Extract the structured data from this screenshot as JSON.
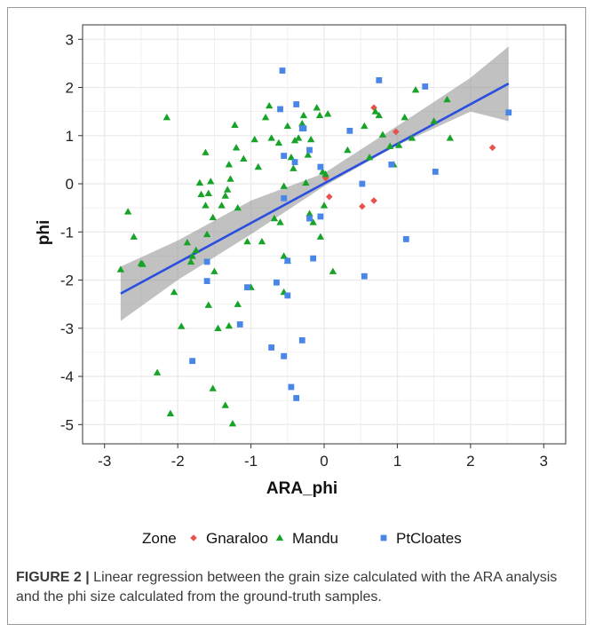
{
  "chart_data": {
    "type": "scatter",
    "xlabel": "ARA_phi",
    "ylabel": "phi",
    "xlim": [
      -3.3,
      3.3
    ],
    "ylim": [
      -5.4,
      3.3
    ],
    "x_ticks": [
      -3,
      -2,
      -1,
      0,
      1,
      2,
      3
    ],
    "y_ticks": [
      -5,
      -4,
      -3,
      -2,
      -1,
      0,
      1,
      2,
      3
    ],
    "grid": true,
    "legend": {
      "title": "Zone",
      "position": "bottom",
      "entries": [
        "Gnaraloo",
        "Mandu",
        "PtCloates"
      ]
    },
    "regression": {
      "method": "linear",
      "fit_line": {
        "x": [
          -2.78,
          2.52
        ],
        "y": [
          -2.28,
          2.08
        ]
      },
      "confidence_band": {
        "x": [
          -2.78,
          -2.0,
          -1.0,
          0.0,
          1.0,
          2.0,
          2.52
        ],
        "lower": [
          -2.85,
          -2.0,
          -1.05,
          -0.05,
          0.8,
          1.5,
          1.3
        ],
        "upper": [
          -1.72,
          -1.18,
          -0.35,
          0.22,
          1.2,
          2.2,
          2.85
        ]
      }
    },
    "series": [
      {
        "name": "Gnaraloo",
        "marker": "diamond",
        "points": [
          [
            0.68,
            1.58
          ],
          [
            0.98,
            1.08
          ],
          [
            2.3,
            0.75
          ],
          [
            0.02,
            0.12
          ],
          [
            0.07,
            -0.27
          ],
          [
            0.52,
            -0.47
          ],
          [
            0.68,
            -0.35
          ]
        ]
      },
      {
        "name": "Mandu",
        "marker": "triangle",
        "points": [
          [
            -2.15,
            1.38
          ],
          [
            -2.78,
            -1.78
          ],
          [
            -2.68,
            -0.58
          ],
          [
            -2.6,
            -1.1
          ],
          [
            -2.48,
            -1.67
          ],
          [
            -2.28,
            -3.92
          ],
          [
            -2.1,
            -4.77
          ],
          [
            -2.05,
            -2.25
          ],
          [
            -1.95,
            -2.96
          ],
          [
            -1.87,
            -1.22
          ],
          [
            -1.82,
            -1.62
          ],
          [
            -1.75,
            -1.38
          ],
          [
            -1.7,
            0.02
          ],
          [
            -1.68,
            -0.22
          ],
          [
            -1.62,
            -0.45
          ],
          [
            -1.6,
            -1.05
          ],
          [
            -1.58,
            -0.2
          ],
          [
            -1.55,
            0.05
          ],
          [
            -1.52,
            -0.7
          ],
          [
            -1.5,
            -1.82
          ],
          [
            -1.62,
            0.65
          ],
          [
            -1.58,
            -2.52
          ],
          [
            -1.52,
            -4.25
          ],
          [
            -1.45,
            -3.0
          ],
          [
            -1.4,
            -0.45
          ],
          [
            -1.35,
            -0.25
          ],
          [
            -1.3,
            0.4
          ],
          [
            -1.28,
            0.1
          ],
          [
            -1.32,
            -0.12
          ],
          [
            -1.3,
            -2.95
          ],
          [
            -1.35,
            -4.6
          ],
          [
            -1.25,
            -4.98
          ],
          [
            -1.22,
            1.22
          ],
          [
            -1.2,
            0.75
          ],
          [
            -1.18,
            -0.5
          ],
          [
            -1.18,
            -2.5
          ],
          [
            -1.1,
            0.52
          ],
          [
            -1.05,
            -1.2
          ],
          [
            -1.0,
            -2.15
          ],
          [
            -0.95,
            0.92
          ],
          [
            -0.9,
            0.35
          ],
          [
            -0.85,
            -1.2
          ],
          [
            -0.8,
            1.38
          ],
          [
            -0.75,
            1.62
          ],
          [
            -0.72,
            0.95
          ],
          [
            -0.68,
            -0.72
          ],
          [
            -0.62,
            0.85
          ],
          [
            -0.6,
            -0.8
          ],
          [
            -0.55,
            -0.05
          ],
          [
            -0.55,
            -1.5
          ],
          [
            -0.5,
            -1.6
          ],
          [
            -0.5,
            1.2
          ],
          [
            -0.45,
            0.55
          ],
          [
            -0.42,
            0.32
          ],
          [
            -0.4,
            0.9
          ],
          [
            -0.35,
            0.95
          ],
          [
            -0.3,
            1.25
          ],
          [
            -0.28,
            1.42
          ],
          [
            -0.25,
            0.02
          ],
          [
            -0.22,
            0.6
          ],
          [
            -0.2,
            -0.62
          ],
          [
            -0.18,
            0.92
          ],
          [
            -0.15,
            -0.8
          ],
          [
            -0.1,
            1.58
          ],
          [
            -0.06,
            1.42
          ],
          [
            -0.05,
            -1.1
          ],
          [
            -0.02,
            0.25
          ],
          [
            0.0,
            -0.45
          ],
          [
            0.02,
            0.2
          ],
          [
            0.05,
            1.45
          ],
          [
            0.12,
            -1.82
          ],
          [
            0.32,
            0.7
          ],
          [
            0.55,
            1.2
          ],
          [
            0.62,
            0.55
          ],
          [
            0.7,
            1.5
          ],
          [
            0.75,
            1.42
          ],
          [
            0.8,
            1.02
          ],
          [
            0.9,
            0.78
          ],
          [
            0.95,
            0.4
          ],
          [
            1.02,
            0.8
          ],
          [
            1.1,
            1.38
          ],
          [
            1.2,
            0.95
          ],
          [
            1.25,
            1.95
          ],
          [
            1.5,
            1.3
          ],
          [
            1.68,
            1.75
          ],
          [
            1.72,
            0.95
          ],
          [
            -2.5,
            -1.65
          ],
          [
            -1.8,
            -1.5
          ],
          [
            -0.55,
            -2.25
          ]
        ]
      },
      {
        "name": "PtCloates",
        "marker": "square",
        "points": [
          [
            -0.57,
            2.35
          ],
          [
            -0.6,
            1.55
          ],
          [
            -0.3,
            1.15
          ],
          [
            -0.38,
            1.65
          ],
          [
            0.75,
            2.15
          ],
          [
            1.38,
            2.02
          ],
          [
            2.52,
            1.48
          ],
          [
            0.92,
            0.4
          ],
          [
            1.52,
            0.25
          ],
          [
            1.12,
            -1.15
          ],
          [
            0.55,
            -1.92
          ],
          [
            0.52,
            0.0
          ],
          [
            -0.2,
            -0.72
          ],
          [
            -0.05,
            -0.68
          ],
          [
            -0.05,
            0.35
          ],
          [
            -0.15,
            -1.55
          ],
          [
            -0.5,
            -1.6
          ],
          [
            -0.65,
            -2.05
          ],
          [
            -0.5,
            -2.32
          ],
          [
            -0.55,
            -3.58
          ],
          [
            -0.72,
            -3.4
          ],
          [
            -0.45,
            -4.22
          ],
          [
            -0.38,
            -4.45
          ],
          [
            -0.3,
            -3.25
          ],
          [
            -1.05,
            -2.15
          ],
          [
            -1.15,
            -2.92
          ],
          [
            -1.8,
            -3.68
          ],
          [
            -1.6,
            -2.02
          ],
          [
            -1.6,
            -1.62
          ],
          [
            -0.55,
            -0.3
          ],
          [
            -0.4,
            0.45
          ],
          [
            -0.2,
            0.7
          ],
          [
            -0.55,
            0.58
          ],
          [
            -0.28,
            1.15
          ],
          [
            0.35,
            1.1
          ]
        ]
      }
    ]
  },
  "colors": {
    "gnaraloo": "#e8524a",
    "mandu": "#17a328",
    "ptcloates": "#4a86e8",
    "fit_line": "#2a4fe0",
    "band": "#8e8e8e",
    "panel_bg": "#ffffff",
    "grid": "#ebebeb"
  },
  "caption": {
    "label": "FIGURE 2 |",
    "text": " Linear regression between the grain size calculated with the ARA analysis and the phi size calculated from the ground-truth samples."
  }
}
